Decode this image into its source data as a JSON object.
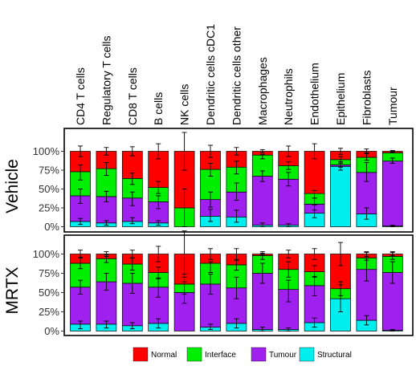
{
  "chart_data": {
    "type": "bar",
    "stacked": true,
    "normalized": true,
    "categories": [
      "CD4 T cells",
      "Regulatory T cells",
      "CD8 T cells",
      "B cells",
      "NK cells",
      "Dendritic cells cDC1",
      "Dendritic cells other",
      "Macrophages",
      "Neutrophils",
      "Endothelium",
      "Epithelium",
      "Fibroblasts",
      "Tumour"
    ],
    "stack_order_bottom_to_top": [
      "Structural",
      "Tumour",
      "Interface",
      "Normal"
    ],
    "series": [
      {
        "name": "Normal",
        "color": "#ff0000"
      },
      {
        "name": "Interface",
        "color": "#00ee00"
      },
      {
        "name": "Tumour",
        "color": "#a020f0"
      },
      {
        "name": "Structural",
        "color": "#00eeee"
      }
    ],
    "y_ticks": [
      "0%",
      "25%",
      "50%",
      "75%",
      "100%"
    ],
    "ylim": [
      0,
      1
    ],
    "legend_position": "bottom",
    "panels": [
      {
        "label": "Vehicle",
        "stacks": [
          {
            "Structural": 0.07,
            "Tumour": 0.34,
            "Interface": 0.32,
            "Normal": 0.27
          },
          {
            "Structural": 0.05,
            "Tumour": 0.35,
            "Interface": 0.37,
            "Normal": 0.23
          },
          {
            "Structural": 0.07,
            "Tumour": 0.31,
            "Interface": 0.26,
            "Normal": 0.36
          },
          {
            "Structural": 0.05,
            "Tumour": 0.28,
            "Interface": 0.19,
            "Normal": 0.48
          },
          {
            "Structural": 0.0,
            "Tumour": 0.0,
            "Interface": 0.25,
            "Normal": 0.75
          },
          {
            "Structural": 0.14,
            "Tumour": 0.22,
            "Interface": 0.4,
            "Normal": 0.24
          },
          {
            "Structural": 0.13,
            "Tumour": 0.33,
            "Interface": 0.33,
            "Normal": 0.21
          },
          {
            "Structural": 0.02,
            "Tumour": 0.65,
            "Interface": 0.28,
            "Normal": 0.05
          },
          {
            "Structural": 0.02,
            "Tumour": 0.61,
            "Interface": 0.18,
            "Normal": 0.19
          },
          {
            "Structural": 0.18,
            "Tumour": 0.12,
            "Interface": 0.14,
            "Normal": 0.56
          },
          {
            "Structural": 0.8,
            "Tumour": 0.02,
            "Interface": 0.07,
            "Normal": 0.11
          },
          {
            "Structural": 0.17,
            "Tumour": 0.55,
            "Interface": 0.2,
            "Normal": 0.08
          },
          {
            "Structural": 0.01,
            "Tumour": 0.86,
            "Interface": 0.11,
            "Normal": 0.02
          }
        ],
        "error_bars": [
          {
            "Interface": [
              0.62,
              0.82
            ],
            "Tumour": [
              0.31,
              0.5
            ],
            "Structural": [
              0.03,
              0.11
            ],
            "Normal": [
              0.93,
              1.07
            ]
          },
          {
            "Interface": [
              0.68,
              0.85
            ],
            "Tumour": [
              0.33,
              0.47
            ],
            "Structural": [
              0.02,
              0.08
            ],
            "Normal": [
              0.95,
              1.05
            ]
          },
          {
            "Interface": [
              0.56,
              0.71
            ],
            "Tumour": [
              0.28,
              0.46
            ],
            "Structural": [
              0.04,
              0.12
            ],
            "Normal": [
              0.94,
              1.06
            ]
          },
          {
            "Interface": [
              0.44,
              0.6
            ],
            "Tumour": [
              0.24,
              0.41
            ],
            "Structural": [
              0.02,
              0.08
            ],
            "Normal": [
              0.9,
              1.1
            ]
          },
          {
            "Interface": [
              0.0,
              0.5
            ],
            "Normal": [
              0.75,
              1.25
            ]
          },
          {
            "Interface": [
              0.67,
              0.84
            ],
            "Tumour": [
              0.26,
              0.46
            ],
            "Structural": [
              0.07,
              0.23
            ],
            "Normal": [
              0.92,
              1.08
            ]
          },
          {
            "Interface": [
              0.7,
              0.87
            ],
            "Tumour": [
              0.35,
              0.58
            ],
            "Structural": [
              0.06,
              0.22
            ],
            "Normal": [
              0.95,
              1.05
            ]
          },
          {
            "Interface": [
              0.9,
              0.96
            ],
            "Tumour": [
              0.6,
              0.74
            ],
            "Structural": [
              0.0,
              0.05
            ],
            "Normal": [
              0.98,
              1.02
            ]
          },
          {
            "Interface": [
              0.76,
              0.86
            ],
            "Tumour": [
              0.54,
              0.72
            ],
            "Structural": [
              0.0,
              0.04
            ],
            "Normal": [
              0.93,
              1.07
            ]
          },
          {
            "Interface": [
              0.38,
              0.48
            ],
            "Tumour": [
              0.22,
              0.38
            ],
            "Structural": [
              0.12,
              0.29
            ],
            "Normal": [
              0.9,
              1.1
            ]
          },
          {
            "Interface": [
              0.84,
              0.93
            ],
            "Tumour": [
              0.79,
              0.86
            ],
            "Structural": [
              0.75,
              0.86
            ],
            "Normal": [
              0.96,
              1.04
            ]
          },
          {
            "Interface": [
              0.88,
              0.98
            ],
            "Tumour": [
              0.6,
              0.85
            ],
            "Structural": [
              0.1,
              0.25
            ],
            "Normal": [
              0.97,
              1.03
            ]
          },
          {
            "Interface": [
              0.98,
              1.0
            ],
            "Tumour": [
              0.84,
              0.91
            ],
            "Structural": [
              0.0,
              0.02
            ],
            "Normal": [
              0.99,
              1.01
            ]
          }
        ]
      },
      {
        "label": "MRTX",
        "stacks": [
          {
            "Structural": 0.09,
            "Tumour": 0.48,
            "Interface": 0.31,
            "Normal": 0.12
          },
          {
            "Structural": 0.09,
            "Tumour": 0.55,
            "Interface": 0.3,
            "Normal": 0.06
          },
          {
            "Structural": 0.07,
            "Tumour": 0.55,
            "Interface": 0.25,
            "Normal": 0.13
          },
          {
            "Structural": 0.1,
            "Tumour": 0.47,
            "Interface": 0.19,
            "Normal": 0.24
          },
          {
            "Structural": 0.0,
            "Tumour": 0.5,
            "Interface": 0.11,
            "Normal": 0.39
          },
          {
            "Structural": 0.05,
            "Tumour": 0.56,
            "Interface": 0.27,
            "Normal": 0.12
          },
          {
            "Structural": 0.1,
            "Tumour": 0.46,
            "Interface": 0.3,
            "Normal": 0.14
          },
          {
            "Structural": 0.02,
            "Tumour": 0.73,
            "Interface": 0.23,
            "Normal": 0.02
          },
          {
            "Structural": 0.02,
            "Tumour": 0.52,
            "Interface": 0.26,
            "Normal": 0.2
          },
          {
            "Structural": 0.11,
            "Tumour": 0.48,
            "Interface": 0.18,
            "Normal": 0.23
          },
          {
            "Structural": 0.42,
            "Tumour": 0.0,
            "Interface": 0.13,
            "Normal": 0.45
          },
          {
            "Structural": 0.14,
            "Tumour": 0.66,
            "Interface": 0.15,
            "Normal": 0.05
          },
          {
            "Structural": 0.01,
            "Tumour": 0.75,
            "Interface": 0.21,
            "Normal": 0.03
          }
        ],
        "error_bars": [
          {
            "Interface": [
              0.81,
              0.96
            ],
            "Tumour": [
              0.48,
              0.66
            ],
            "Structural": [
              0.03,
              0.13
            ],
            "Normal": [
              0.95,
              1.05
            ]
          },
          {
            "Interface": [
              0.89,
              0.99
            ],
            "Tumour": [
              0.53,
              0.75
            ],
            "Structural": [
              0.04,
              0.13
            ],
            "Normal": [
              0.97,
              1.03
            ]
          },
          {
            "Interface": [
              0.79,
              0.95
            ],
            "Tumour": [
              0.49,
              0.75
            ],
            "Structural": [
              0.03,
              0.11
            ],
            "Normal": [
              0.95,
              1.05
            ]
          },
          {
            "Interface": [
              0.69,
              0.83
            ],
            "Tumour": [
              0.44,
              0.68
            ],
            "Structural": [
              0.04,
              0.16
            ],
            "Normal": [
              0.9,
              1.1
            ]
          },
          {
            "Interface": [
              0.48,
              0.74
            ],
            "Tumour": [
              0.36,
              0.64
            ],
            "Normal": [
              0.7,
              1.3
            ]
          },
          {
            "Interface": [
              0.76,
              0.9
            ],
            "Tumour": [
              0.48,
              0.74
            ],
            "Structural": [
              0.02,
              0.09
            ],
            "Normal": [
              0.93,
              1.07
            ]
          },
          {
            "Interface": [
              0.79,
              0.92
            ],
            "Tumour": [
              0.42,
              0.7
            ],
            "Structural": [
              0.04,
              0.16
            ],
            "Normal": [
              0.93,
              1.07
            ]
          },
          {
            "Interface": [
              0.93,
              1.03
            ],
            "Tumour": [
              0.62,
              0.88
            ],
            "Structural": [
              0.0,
              0.05
            ],
            "Normal": [
              0.99,
              1.01
            ]
          },
          {
            "Interface": [
              0.7,
              0.9
            ],
            "Tumour": [
              0.38,
              0.66
            ],
            "Structural": [
              0.0,
              0.04
            ],
            "Normal": [
              0.95,
              1.05
            ]
          },
          {
            "Interface": [
              0.7,
              0.85
            ],
            "Tumour": [
              0.46,
              0.71
            ],
            "Structural": [
              0.05,
              0.17
            ],
            "Normal": [
              0.93,
              1.07
            ]
          },
          {
            "Interface": [
              0.46,
              0.64
            ],
            "Structural": [
              0.25,
              0.6
            ],
            "Normal": [
              0.85,
              1.15
            ]
          },
          {
            "Interface": [
              0.92,
              1.02
            ],
            "Tumour": [
              0.65,
              0.95
            ],
            "Structural": [
              0.08,
              0.2
            ],
            "Normal": [
              0.97,
              1.03
            ]
          },
          {
            "Interface": [
              0.93,
              1.03
            ],
            "Tumour": [
              0.62,
              0.9
            ],
            "Structural": [
              0.0,
              0.02
            ],
            "Normal": [
              0.98,
              1.02
            ]
          }
        ]
      }
    ]
  }
}
